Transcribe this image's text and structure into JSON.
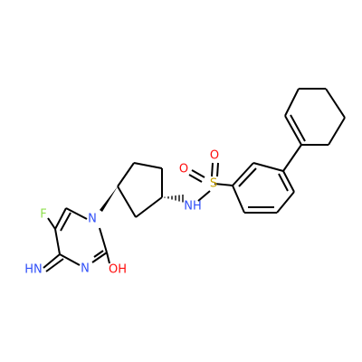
{
  "atom_labels": {
    "S": "S",
    "O1": "O",
    "O2": "O",
    "NH": "NH",
    "N1": "N",
    "N3": "N",
    "F": "F",
    "HN": "HN",
    "OH": "OH"
  },
  "colors": {
    "background": "#ffffff",
    "bond": "#000000",
    "nitrogen": "#3050F8",
    "oxygen": "#FF0D0D",
    "sulfur": "#C8A200",
    "fluorine": "#90E050"
  }
}
